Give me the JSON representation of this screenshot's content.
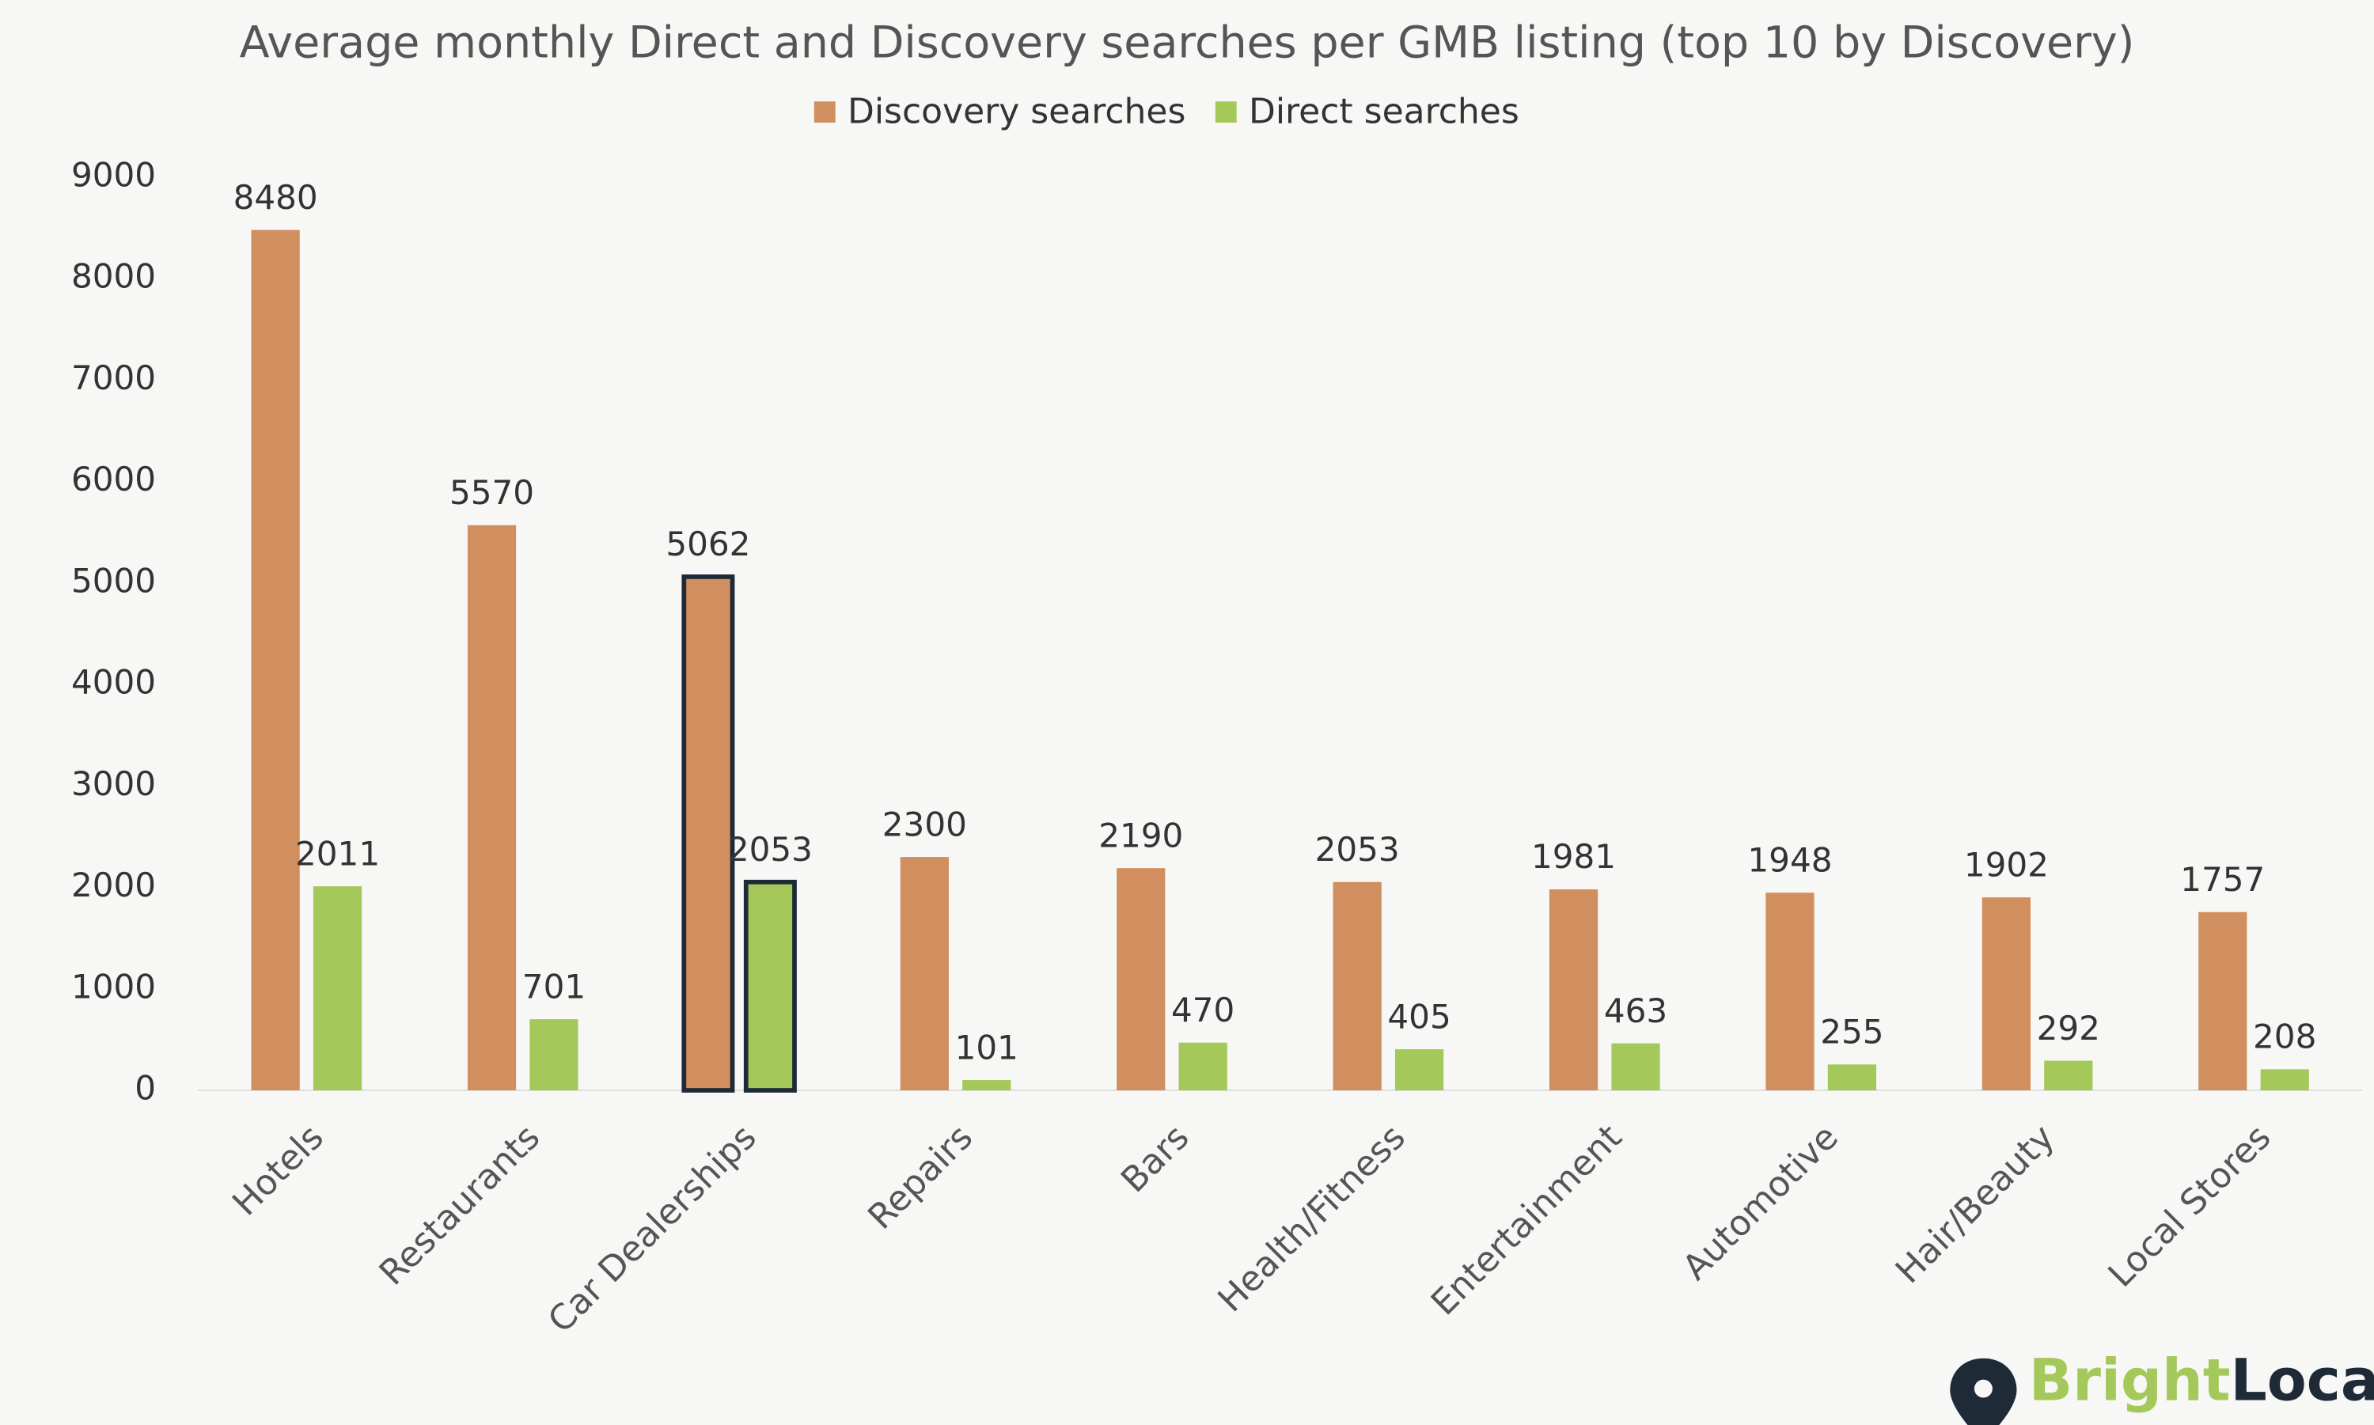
{
  "chart_data": {
    "type": "bar",
    "title": "Average monthly Direct and Discovery searches per GMB listing (top 10 by Discovery)",
    "categories": [
      "Hotels",
      "Restaurants",
      "Car Dealerships",
      "Repairs",
      "Bars",
      "Health/Fitness",
      "Entertainment",
      "Automotive",
      "Hair/Beauty",
      "Local Stores"
    ],
    "series": [
      {
        "name": "Discovery searches",
        "color": "#d18f5f",
        "values": [
          8480,
          5570,
          5062,
          2300,
          2190,
          2053,
          1981,
          1948,
          1902,
          1757
        ]
      },
      {
        "name": "Direct searches",
        "color": "#a5c85a",
        "values": [
          2011,
          701,
          2053,
          101,
          470,
          405,
          463,
          255,
          292,
          208
        ]
      }
    ],
    "ylim": [
      0,
      9000
    ],
    "yticks": [
      0,
      1000,
      2000,
      3000,
      4000,
      5000,
      6000,
      7000,
      8000,
      9000
    ],
    "highlight": "Car Dealerships",
    "legend": "top",
    "logo": [
      "Bright",
      "Local"
    ]
  }
}
